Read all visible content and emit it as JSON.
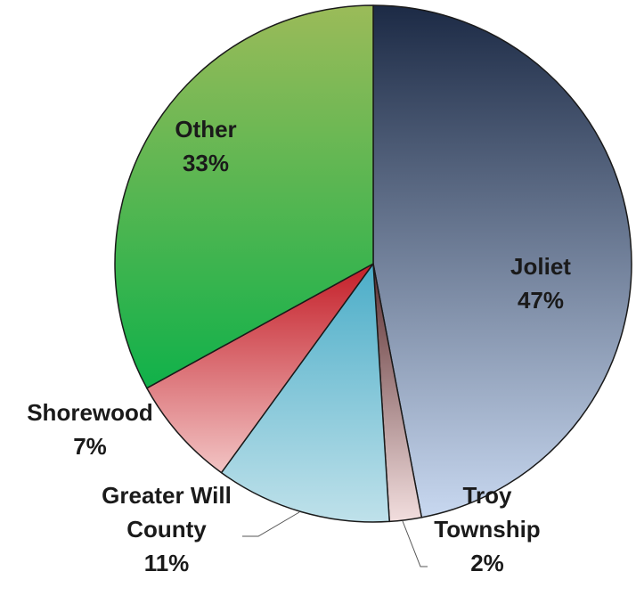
{
  "chart_data": {
    "type": "pie",
    "title": "",
    "start_angle_deg": 0,
    "direction": "clockwise",
    "slices": [
      {
        "label": "Joliet",
        "label_lines": [
          "Joliet"
        ],
        "percent_text": "47%",
        "value": 47,
        "color_top": "#1c2a45",
        "color_bottom": "#c8d8f0"
      },
      {
        "label": "Troy Township",
        "label_lines": [
          "Troy",
          "Township"
        ],
        "percent_text": "2%",
        "value": 2,
        "color_top": "#5a2e30",
        "color_bottom": "#f2dede"
      },
      {
        "label": "Greater Will County",
        "label_lines": [
          "Greater Will",
          "County"
        ],
        "percent_text": "11%",
        "value": 11,
        "color_top": "#4badc8",
        "color_bottom": "#bfe1ea"
      },
      {
        "label": "Shorewood",
        "label_lines": [
          "Shorewood"
        ],
        "percent_text": "7%",
        "value": 7,
        "color_top": "#c41e28",
        "color_bottom": "#f2c4c4"
      },
      {
        "label": "Other",
        "label_lines": [
          "Other"
        ],
        "percent_text": "33%",
        "value": 33,
        "color_top": "#9bbb59",
        "color_bottom": "#10b14a"
      }
    ]
  }
}
